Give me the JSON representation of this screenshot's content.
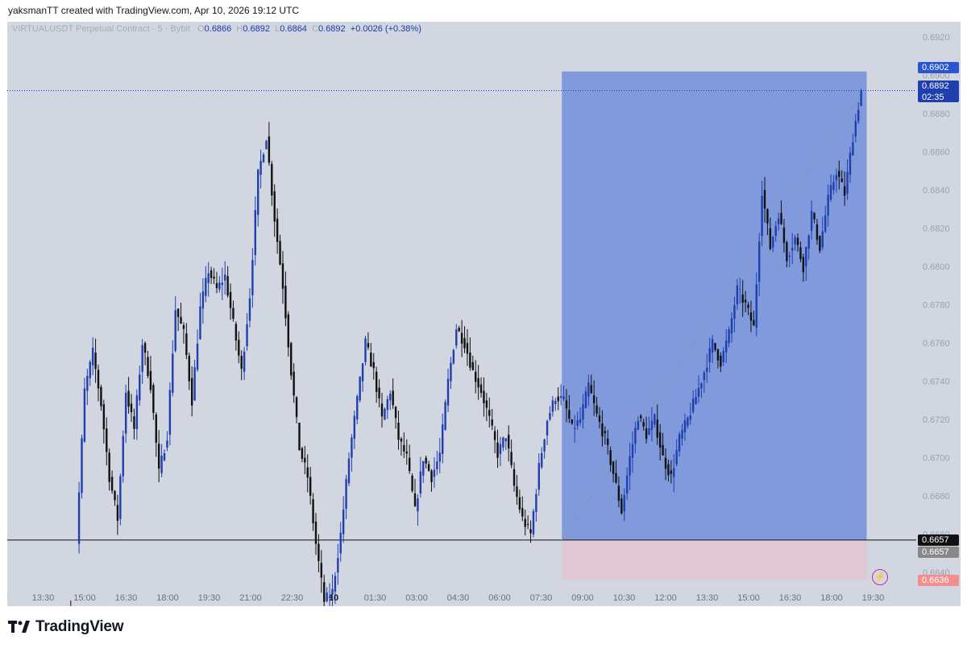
{
  "watermark": {
    "text": "yaksmanTT created with TradingView.com, Apr 10, 2026 19:12 UTC"
  },
  "legend": {
    "symbol": "VIRTUALUSDT Perpetual Contract · 5 · Bybit",
    "o_label": "O",
    "o": "0.6866",
    "h_label": "H",
    "h": "0.6892",
    "l_label": "L",
    "l": "0.6864",
    "c_label": "C",
    "c": "0.6892",
    "change": "+0.0026 (+0.38%)"
  },
  "price_tags": {
    "target": {
      "value": "0.6902",
      "color": "#2b55d0"
    },
    "current": {
      "value": "0.6892",
      "countdown": "02:35",
      "color": "#1f3fae"
    },
    "entry": {
      "value": "0.6657",
      "color": "#111111"
    },
    "entry_dup": {
      "value": "0.6657",
      "color": "#888888"
    },
    "stop": {
      "value": "0.6636",
      "color": "#f28e8e"
    }
  },
  "brand": {
    "name": "TradingView",
    "logo": "tradingview-logo-icon"
  },
  "icons": {
    "bolt": "lightning-bolt-icon"
  },
  "chart_data": {
    "type": "candlestick",
    "symbol": "VIRTUALUSDT Perpetual Contract",
    "timeframe": "5",
    "exchange": "Bybit",
    "ylim": [
      0.663,
      0.6928
    ],
    "y_ticks": [
      "0.6920",
      "0.6900",
      "0.6880",
      "0.6860",
      "0.6840",
      "0.6820",
      "0.6800",
      "0.6780",
      "0.6760",
      "0.6740",
      "0.6720",
      "0.6700",
      "0.6680",
      "0.6660",
      "0.6640"
    ],
    "x_ticks": [
      "12:00",
      "13:30",
      "15:00",
      "16:30",
      "18:00",
      "19:30",
      "21:00",
      "22:30",
      "10",
      "01:30",
      "03:00",
      "04:30",
      "06:00",
      "07:30",
      "09:00",
      "10:30",
      "12:00",
      "13:30",
      "15:00",
      "16:30",
      "18:00",
      "19:30"
    ],
    "x_tick_partial_first": ":00",
    "price_path": [
      [
        0.6618,
        0.661
      ],
      [
        0.6655,
        0.6735
      ],
      [
        0.6735,
        0.6755
      ],
      [
        0.6755,
        0.6728
      ],
      [
        0.6728,
        0.669
      ],
      [
        0.669,
        0.6668
      ],
      [
        0.6668,
        0.6735
      ],
      [
        0.6735,
        0.6715
      ],
      [
        0.6715,
        0.676
      ],
      [
        0.676,
        0.6738
      ],
      [
        0.6738,
        0.6692
      ],
      [
        0.6692,
        0.6712
      ],
      [
        0.6712,
        0.6778
      ],
      [
        0.6778,
        0.6765
      ],
      [
        0.6765,
        0.673
      ],
      [
        0.673,
        0.6778
      ],
      [
        0.6778,
        0.6798
      ],
      [
        0.6798,
        0.6788
      ],
      [
        0.6788,
        0.6795
      ],
      [
        0.6795,
        0.677
      ],
      [
        0.677,
        0.6745
      ],
      [
        0.6745,
        0.6785
      ],
      [
        0.6785,
        0.6848
      ],
      [
        0.6848,
        0.6868
      ],
      [
        0.6868,
        0.6825
      ],
      [
        0.6825,
        0.679
      ],
      [
        0.679,
        0.6745
      ],
      [
        0.6745,
        0.6705
      ],
      [
        0.6705,
        0.669
      ],
      [
        0.669,
        0.6655
      ],
      [
        0.6655,
        0.6625
      ],
      [
        0.6625,
        0.663
      ],
      [
        0.663,
        0.666
      ],
      [
        0.666,
        0.67
      ],
      [
        0.67,
        0.673
      ],
      [
        0.673,
        0.676
      ],
      [
        0.676,
        0.6745
      ],
      [
        0.6745,
        0.672
      ],
      [
        0.672,
        0.6735
      ],
      [
        0.6735,
        0.671
      ],
      [
        0.671,
        0.67
      ],
      [
        0.67,
        0.6672
      ],
      [
        0.6672,
        0.67
      ],
      [
        0.67,
        0.669
      ],
      [
        0.669,
        0.6702
      ],
      [
        0.6702,
        0.674
      ],
      [
        0.674,
        0.6768
      ],
      [
        0.6768,
        0.676
      ],
      [
        0.676,
        0.6745
      ],
      [
        0.6745,
        0.6735
      ],
      [
        0.6735,
        0.672
      ],
      [
        0.672,
        0.6702
      ],
      [
        0.6702,
        0.6712
      ],
      [
        0.6712,
        0.6685
      ],
      [
        0.6685,
        0.6668
      ],
      [
        0.6668,
        0.666
      ],
      [
        0.666,
        0.6695
      ],
      [
        0.6695,
        0.672
      ],
      [
        0.672,
        0.6732
      ],
      [
        0.6732,
        0.673
      ],
      [
        0.673,
        0.6715
      ],
      [
        0.6715,
        0.672
      ],
      [
        0.672,
        0.6738
      ],
      [
        0.6738,
        0.6722
      ],
      [
        0.6722,
        0.671
      ],
      [
        0.671,
        0.6692
      ],
      [
        0.6692,
        0.6672
      ],
      [
        0.6672,
        0.67
      ],
      [
        0.67,
        0.6722
      ],
      [
        0.6722,
        0.6712
      ],
      [
        0.6712,
        0.672
      ],
      [
        0.672,
        0.67
      ],
      [
        0.67,
        0.669
      ],
      [
        0.669,
        0.671
      ],
      [
        0.671,
        0.672
      ],
      [
        0.672,
        0.6732
      ],
      [
        0.6732,
        0.6745
      ],
      [
        0.6745,
        0.676
      ],
      [
        0.676,
        0.675
      ],
      [
        0.675,
        0.6765
      ],
      [
        0.6765,
        0.6788
      ],
      [
        0.6788,
        0.678
      ],
      [
        0.678,
        0.6768
      ],
      [
        0.6768,
        0.684
      ],
      [
        0.684,
        0.681
      ],
      [
        0.681,
        0.6828
      ],
      [
        0.6828,
        0.6805
      ],
      [
        0.6805,
        0.6815
      ],
      [
        0.6815,
        0.68
      ],
      [
        0.68,
        0.6828
      ],
      [
        0.6828,
        0.681
      ],
      [
        0.681,
        0.6835
      ],
      [
        0.6835,
        0.685
      ],
      [
        0.685,
        0.6838
      ],
      [
        0.6838,
        0.6868
      ],
      [
        0.6868,
        0.6892
      ]
    ],
    "shapes": {
      "long_position": {
        "entry": 0.6657,
        "target": 0.6902,
        "stop": 0.6636,
        "start_time": "08:15",
        "end_time": "19:30"
      },
      "horizontal_line": 0.6657,
      "trend_line": {
        "from": [
          0.6657,
          "08:15"
        ],
        "to": [
          0.6892,
          "19:10"
        ]
      },
      "last_price_line": 0.6892
    }
  }
}
